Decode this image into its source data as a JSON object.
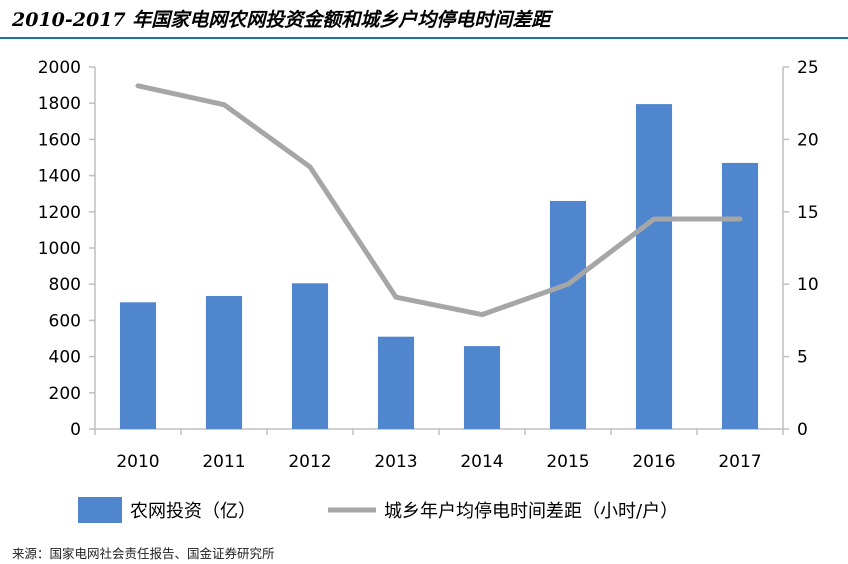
{
  "title": "2010-2017 年国家电网农网投资金额和城乡户均停电时间差距",
  "source": "来源：国家电网社会责任报告、国金证券研究所",
  "colors": {
    "bar": "#4f86cd",
    "line": "#a6a6a6",
    "rule": "#1f6fb5",
    "axis": "#bfbfbf"
  },
  "chart_data": {
    "type": "bar+line",
    "categories": [
      "2010",
      "2011",
      "2012",
      "2013",
      "2014",
      "2015",
      "2016",
      "2017"
    ],
    "series": [
      {
        "name": "农网投资（亿）",
        "type": "bar",
        "axis": "left",
        "values": [
          700,
          735,
          805,
          510,
          458,
          1260,
          1795,
          1470
        ]
      },
      {
        "name": "城乡年户均停电时间差距（小时/户）",
        "type": "line",
        "axis": "right",
        "values": [
          23.7,
          22.4,
          18.1,
          9.1,
          7.9,
          10.0,
          14.5,
          14.5
        ]
      }
    ],
    "left_axis": {
      "min": 0,
      "max": 2000,
      "ticks": [
        "0",
        "200",
        "400",
        "600",
        "800",
        "1000",
        "1200",
        "1400",
        "1600",
        "1800",
        "2000"
      ]
    },
    "right_axis": {
      "min": 0,
      "max": 25,
      "ticks": [
        "0",
        "5",
        "10",
        "15",
        "20",
        "25"
      ]
    },
    "grid": false,
    "legend_position": "bottom"
  }
}
